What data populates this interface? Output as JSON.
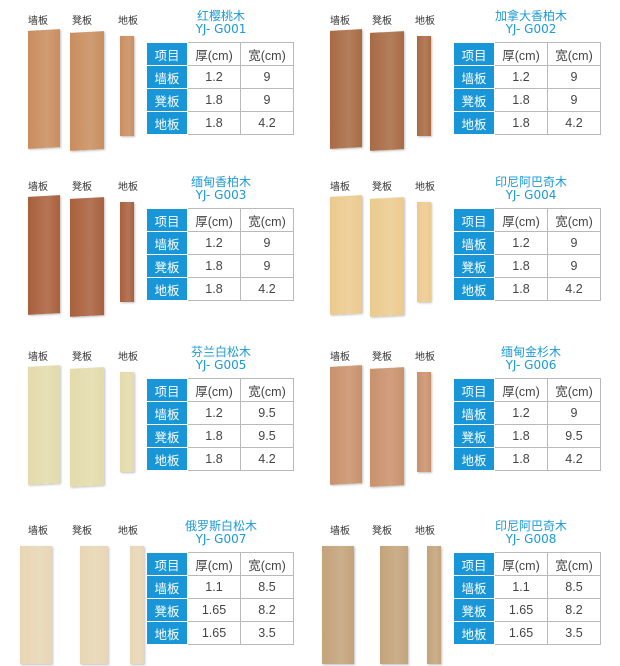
{
  "board_labels": [
    "墙板",
    "凳板",
    "地板"
  ],
  "table_headers": [
    "项目",
    "厚(cm)",
    "宽(cm)"
  ],
  "header_color": "#1896d8",
  "title_color": "#1a9ad6",
  "products": [
    {
      "name": "红樱桃木",
      "code": "YJ- G001",
      "wood_color": "#c98d5e",
      "rows": [
        [
          "墙板",
          "1.2",
          "9"
        ],
        [
          "凳板",
          "1.8",
          "9"
        ],
        [
          "地板",
          "1.8",
          "4.2"
        ]
      ]
    },
    {
      "name": "加拿大香柏木",
      "code": "YJ- G002",
      "wood_color": "#a86a43",
      "rows": [
        [
          "墙板",
          "1.2",
          "9"
        ],
        [
          "凳板",
          "1.8",
          "9"
        ],
        [
          "地板",
          "1.8",
          "4.2"
        ]
      ]
    },
    {
      "name": "缅甸香柏木",
      "code": "YJ- G003",
      "wood_color": "#a9603c",
      "rows": [
        [
          "墙板",
          "1.2",
          "9"
        ],
        [
          "凳板",
          "1.8",
          "9"
        ],
        [
          "地板",
          "1.8",
          "4.2"
        ]
      ]
    },
    {
      "name": "印尼阿巴奇木",
      "code": "YJ- G004",
      "wood_color": "#ecca8e",
      "rows": [
        [
          "墙板",
          "1.2",
          "9"
        ],
        [
          "凳板",
          "1.8",
          "9"
        ],
        [
          "地板",
          "1.8",
          "4.2"
        ]
      ]
    },
    {
      "name": "芬兰白松木",
      "code": "YJ- G005",
      "wood_color": "#e3dbab",
      "rows": [
        [
          "墙板",
          "1.2",
          "9.5"
        ],
        [
          "凳板",
          "1.8",
          "9.5"
        ],
        [
          "地板",
          "1.8",
          "4.2"
        ]
      ]
    },
    {
      "name": "缅甸金杉木",
      "code": "YJ- G006",
      "wood_color": "#c9916c",
      "rows": [
        [
          "墙板",
          "1.2",
          "9"
        ],
        [
          "凳板",
          "1.8",
          "9.5"
        ],
        [
          "地板",
          "1.8",
          "4.2"
        ]
      ]
    },
    {
      "name": "俄罗斯白松木",
      "code": "YJ- G007",
      "wood_color": "#e8d6b4",
      "rows": [
        [
          "墙板",
          "1.1",
          "8.5"
        ],
        [
          "凳板",
          "1.65",
          "8.2"
        ],
        [
          "地板",
          "1.65",
          "3.5"
        ]
      ]
    },
    {
      "name": "印尼阿巴奇木",
      "code": "YJ- G008",
      "wood_color": "#c3a37a",
      "rows": [
        [
          "墙板",
          "1.1",
          "8.5"
        ],
        [
          "凳板",
          "1.65",
          "8.2"
        ],
        [
          "地板",
          "1.65",
          "3.5"
        ]
      ]
    }
  ]
}
